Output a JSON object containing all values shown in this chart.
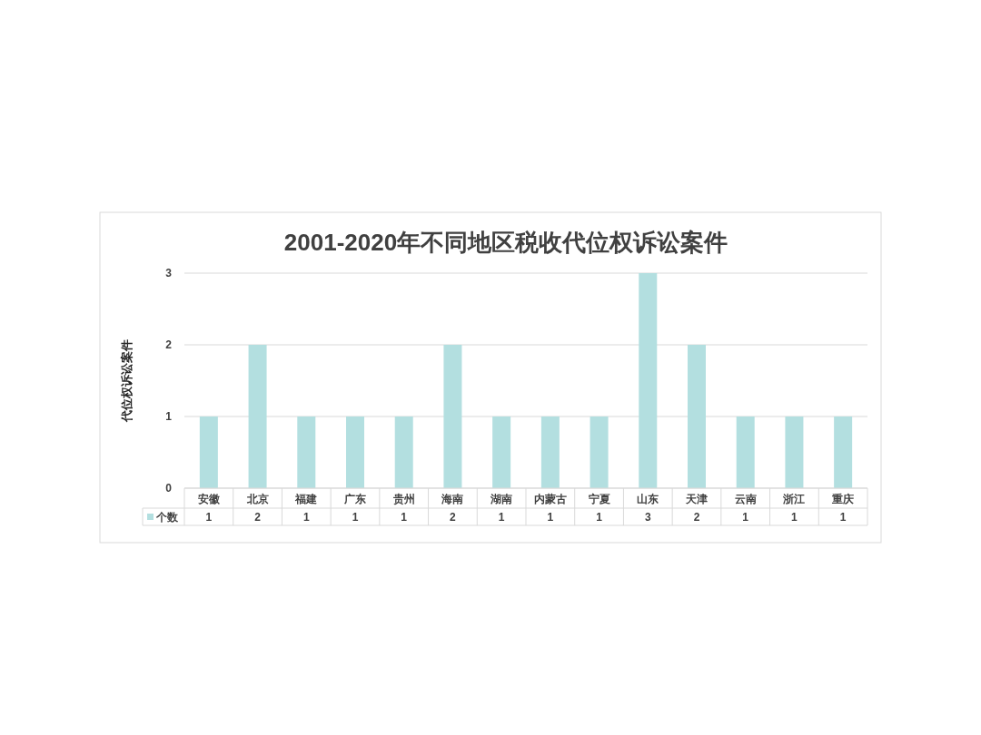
{
  "chart_data": {
    "type": "bar",
    "title": "2001-2020年不同地区税收代位权诉讼案件",
    "ylabel": "代位权诉讼案件",
    "categories": [
      "安徽",
      "北京",
      "福建",
      "广东",
      "贵州",
      "海南",
      "湖南",
      "内蒙古",
      "宁夏",
      "山东",
      "天津",
      "云南",
      "浙江",
      "重庆"
    ],
    "series": [
      {
        "name": "个数",
        "color": "#b3dfe0",
        "values": [
          1,
          2,
          1,
          1,
          1,
          2,
          1,
          1,
          1,
          3,
          2,
          1,
          1,
          1
        ]
      }
    ],
    "ylim": [
      0,
      3
    ],
    "yticks": [
      0,
      1,
      2,
      3
    ],
    "grid": "y",
    "data_labels": true,
    "legend": "bottom"
  }
}
